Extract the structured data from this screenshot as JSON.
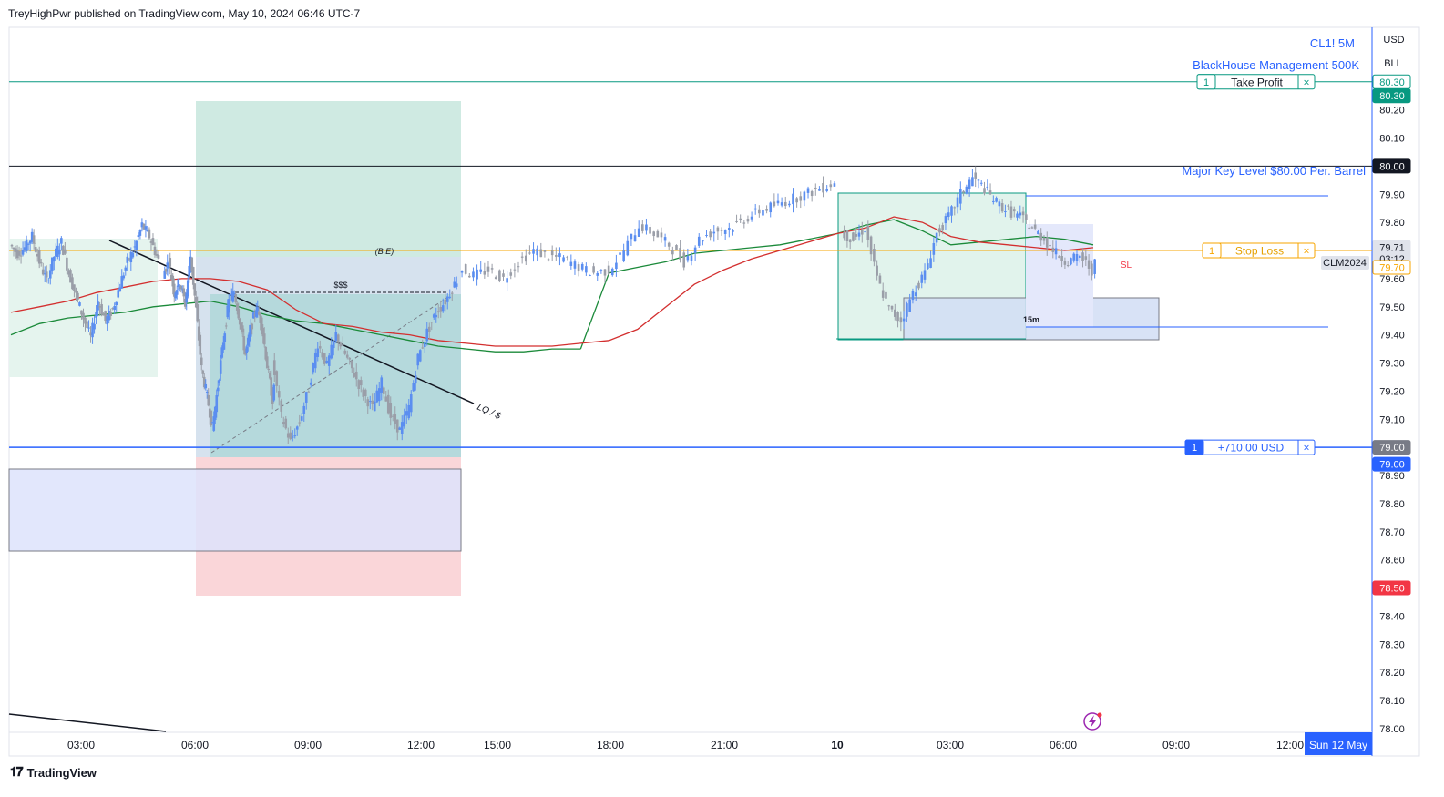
{
  "header": {
    "published": "TreyHighPwr published on TradingView.com, May 10, 2024 06:46 UTC-7"
  },
  "footer": {
    "brand": "TradingView",
    "logo_icon": "tradingview-logo-icon"
  },
  "legend": {
    "symbol": "CL1! 5M",
    "account": "BlackHouse Management 500K"
  },
  "scale_header": {
    "currency": "USD",
    "unit": "BLL"
  },
  "chart_data": {
    "type": "candlestick",
    "x_axis_labels": [
      "03:00",
      "06:00",
      "09:00",
      "12:00",
      "15:00",
      "18:00",
      "21:00",
      "10",
      "03:00",
      "06:00",
      "09:00",
      "12:00"
    ],
    "x_axis_highlight": "Sun 12 May",
    "y_ticks": [
      80.2,
      80.1,
      79.9,
      79.8,
      79.6,
      79.5,
      79.4,
      79.3,
      79.2,
      79.1,
      78.9,
      78.8,
      78.7,
      78.6,
      78.4,
      78.3,
      78.2,
      78.1,
      78.0
    ],
    "ylim": [
      77.99,
      80.33
    ],
    "price_tags": [
      {
        "label": "80.30",
        "value": 80.3,
        "style": "outline",
        "color": "#089981"
      },
      {
        "label": "80.30",
        "value": 80.25,
        "style": "fill",
        "color": "#089981"
      },
      {
        "label": "80.00",
        "value": 80.0,
        "style": "fill",
        "color": "#131722"
      },
      {
        "label": "79.71",
        "value": 79.71,
        "style": "fill",
        "color": "#e0e3eb",
        "sub": "03:12"
      },
      {
        "label": "79.70",
        "value": 79.64,
        "style": "outline",
        "color": "#f7a600"
      },
      {
        "label": "79.00",
        "value": 79.0,
        "style": "fill",
        "color": "#787b86"
      },
      {
        "label": "79.00",
        "value": 78.94,
        "style": "fill",
        "color": "#2962ff"
      },
      {
        "label": "78.50",
        "value": 78.5,
        "style": "fill",
        "color": "#f23645"
      }
    ],
    "horizontal_lines": [
      {
        "name": "take-profit-line",
        "value": 80.3,
        "color": "#089981"
      },
      {
        "name": "key-level-line",
        "value": 80.0,
        "color": "#131722"
      },
      {
        "name": "stop-loss-line",
        "value": 79.7,
        "color": "#f7a600"
      },
      {
        "name": "position-line",
        "value": 79.0,
        "color": "#2962ff"
      }
    ],
    "orders": [
      {
        "qty": "1",
        "label": "Take Profit",
        "value": 80.3,
        "color": "#089981"
      },
      {
        "qty": "1",
        "label": "Stop Loss",
        "value": 79.7,
        "color": "#f7a600"
      },
      {
        "qty": "1",
        "label": "+710.00 USD",
        "value": 79.0,
        "color": "#2962ff"
      }
    ],
    "order_close_glyph": "×",
    "symbol_tag": "CLM2024",
    "annotations": {
      "key_level": "Major Key Level $80.00 Per. Barrel",
      "be": "(B.E)",
      "dollars": "$$$",
      "lq": "LQ / $",
      "tf": "15m",
      "sl": "SL"
    },
    "price_series": [
      79.72,
      79.69,
      79.71,
      79.75,
      79.66,
      79.59,
      79.68,
      79.73,
      79.62,
      79.54,
      79.46,
      79.39,
      79.52,
      79.45,
      79.49,
      79.58,
      79.66,
      79.71,
      79.79,
      79.75,
      79.68,
      79.62,
      79.66,
      79.55,
      79.59,
      79.51,
      79.68,
      79.49,
      79.28,
      79.18,
      79.07,
      79.22,
      79.38,
      79.52,
      79.55,
      79.45,
      79.33,
      79.42,
      79.5,
      79.44,
      79.29,
      79.17,
      79.31,
      79.11,
      79.02,
      79.09,
      79.21,
      79.37,
      79.29,
      79.4,
      79.33,
      79.26,
      79.19,
      79.14,
      79.23,
      79.11,
      79.06,
      79.14,
      79.32,
      79.41,
      79.48,
      79.52,
      79.58,
      79.64,
      79.61,
      79.63,
      79.6,
      79.66,
      79.7,
      79.68,
      79.67,
      79.64,
      79.62,
      79.63,
      79.7,
      79.79,
      79.76,
      79.72,
      79.66,
      79.74,
      79.77,
      79.78,
      79.81,
      79.84,
      79.86,
      79.88,
      79.9,
      79.92,
      79.94,
      79.76,
      79.74,
      79.78,
      79.6,
      79.49,
      79.45,
      79.55,
      79.62,
      79.76,
      79.82,
      79.9,
      79.96,
      79.92,
      79.87,
      79.84,
      79.82,
      79.78,
      79.74,
      79.69,
      79.66,
      79.68,
      79.63,
      79.72,
      79.79,
      79.93,
      79.76
    ],
    "ema_fast": [
      79.48,
      79.5,
      79.52,
      79.55,
      79.57,
      79.59,
      79.6,
      79.6,
      79.59,
      79.56,
      79.49,
      79.44,
      79.43,
      79.41,
      79.4,
      79.38,
      79.37,
      79.36,
      79.36,
      79.36,
      79.37,
      79.38,
      79.42,
      79.5,
      79.58,
      79.63,
      79.67,
      79.7,
      79.73,
      79.76,
      79.78,
      79.82,
      79.8,
      79.75,
      79.73,
      79.72,
      79.71,
      79.7,
      79.71
    ],
    "ema_slow": [
      79.4,
      79.44,
      79.46,
      79.47,
      79.48,
      79.5,
      79.51,
      79.52,
      79.5,
      79.47,
      79.45,
      79.44,
      79.42,
      79.4,
      79.38,
      79.36,
      79.35,
      79.34,
      79.34,
      79.35,
      79.35,
      79.62,
      79.64,
      79.66,
      79.69,
      79.7,
      79.71,
      79.72,
      79.74,
      79.76,
      79.79,
      79.81,
      79.77,
      79.72,
      79.73,
      79.74,
      79.75,
      79.74,
      79.72
    ]
  }
}
